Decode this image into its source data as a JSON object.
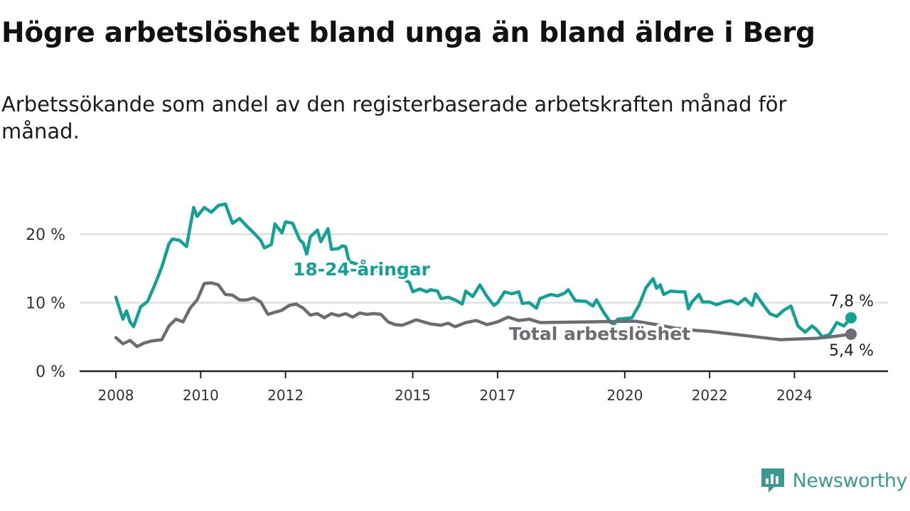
{
  "title": "Högre arbetslöshet bland unga än bland äldre i Berg",
  "subtitle": "Arbetssökande som andel av den registerbaserade arbetskraften månad för månad.",
  "brand": {
    "name": "Newsworthy",
    "icon": "newsworthy-logo-icon",
    "color": "#3a9a92"
  },
  "colors": {
    "youth": "#12a195",
    "total": "#6e6c73",
    "grid": "#d9d9d9",
    "axis": "#222222"
  },
  "chart_data": {
    "type": "line",
    "title": "Högre arbetslöshet bland unga än bland äldre i Berg",
    "xlabel": "",
    "ylabel": "",
    "x_range": [
      "2008-01",
      "2025-12"
    ],
    "ylim": [
      0,
      26
    ],
    "yticks": [
      {
        "value": 0,
        "label": "0 %"
      },
      {
        "value": 10,
        "label": "10 %"
      },
      {
        "value": 20,
        "label": "20 %"
      }
    ],
    "xticks": [
      {
        "year": 2008,
        "label": "2008"
      },
      {
        "year": 2010,
        "label": "2010"
      },
      {
        "year": 2012,
        "label": "2012"
      },
      {
        "year": 2015,
        "label": "2015"
      },
      {
        "year": 2017,
        "label": "2017"
      },
      {
        "year": 2020,
        "label": "2020"
      },
      {
        "year": 2022,
        "label": "2022"
      },
      {
        "year": 2024,
        "label": "2024"
      }
    ],
    "grid": true,
    "series": [
      {
        "name": "18-24-åringar",
        "color": "#12a195",
        "end_label": "7,8 %",
        "points": [
          [
            "2008-01",
            10.8
          ],
          [
            "2008-03",
            7.6
          ],
          [
            "2008-04",
            8.8
          ],
          [
            "2008-05",
            7.2
          ],
          [
            "2008-06",
            6.5
          ],
          [
            "2008-08",
            9.4
          ],
          [
            "2008-10",
            10.2
          ],
          [
            "2008-12",
            12.6
          ],
          [
            "2009-02",
            15.2
          ],
          [
            "2009-04",
            18.6
          ],
          [
            "2009-05",
            19.3
          ],
          [
            "2009-07",
            19.1
          ],
          [
            "2009-09",
            18.2
          ],
          [
            "2009-11",
            23.9
          ],
          [
            "2009-12",
            22.6
          ],
          [
            "2010-02",
            23.9
          ],
          [
            "2010-04",
            23.2
          ],
          [
            "2010-06",
            24.2
          ],
          [
            "2010-08",
            24.4
          ],
          [
            "2010-10",
            21.6
          ],
          [
            "2010-12",
            22.3
          ],
          [
            "2011-02",
            21.2
          ],
          [
            "2011-04",
            20.2
          ],
          [
            "2011-06",
            19.1
          ],
          [
            "2011-07",
            18.0
          ],
          [
            "2011-09",
            18.5
          ],
          [
            "2011-10",
            21.5
          ],
          [
            "2011-12",
            20.2
          ],
          [
            "2012-01",
            21.8
          ],
          [
            "2012-03",
            21.6
          ],
          [
            "2012-05",
            19.2
          ],
          [
            "2012-06",
            18.7
          ],
          [
            "2012-07",
            17.1
          ],
          [
            "2012-08",
            19.6
          ],
          [
            "2012-10",
            20.6
          ],
          [
            "2012-11",
            18.9
          ],
          [
            "2013-01",
            20.8
          ],
          [
            "2013-02",
            17.8
          ],
          [
            "2013-04",
            17.9
          ],
          [
            "2013-05",
            18.3
          ],
          [
            "2013-06",
            18.2
          ],
          [
            "2013-07",
            16.0
          ],
          [
            "2014-10",
            13.5
          ],
          [
            "2014-12",
            13.0
          ],
          [
            "2015-01",
            11.6
          ],
          [
            "2015-03",
            12.0
          ],
          [
            "2015-05",
            11.6
          ],
          [
            "2015-06",
            11.9
          ],
          [
            "2015-08",
            11.7
          ],
          [
            "2015-09",
            10.6
          ],
          [
            "2015-11",
            10.8
          ],
          [
            "2016-01",
            10.4
          ],
          [
            "2016-03",
            9.8
          ],
          [
            "2016-04",
            11.7
          ],
          [
            "2016-06",
            10.9
          ],
          [
            "2016-08",
            12.6
          ],
          [
            "2016-10",
            10.9
          ],
          [
            "2016-12",
            9.6
          ],
          [
            "2017-01",
            10.0
          ],
          [
            "2017-03",
            11.6
          ],
          [
            "2017-05",
            11.3
          ],
          [
            "2017-07",
            11.6
          ],
          [
            "2017-08",
            9.9
          ],
          [
            "2017-10",
            10.0
          ],
          [
            "2017-12",
            9.2
          ],
          [
            "2018-01",
            10.6
          ],
          [
            "2018-04",
            11.2
          ],
          [
            "2018-06",
            11.0
          ],
          [
            "2018-08",
            11.4
          ],
          [
            "2018-09",
            11.9
          ],
          [
            "2018-11",
            10.3
          ],
          [
            "2019-02",
            10.2
          ],
          [
            "2019-04",
            9.5
          ],
          [
            "2019-05",
            10.4
          ],
          [
            "2019-07",
            8.6
          ],
          [
            "2019-09",
            7.1
          ],
          [
            "2019-10",
            6.9
          ],
          [
            "2019-11",
            7.6
          ],
          [
            "2020-03",
            7.8
          ],
          [
            "2020-05",
            9.6
          ],
          [
            "2020-07",
            12.2
          ],
          [
            "2020-09",
            13.5
          ],
          [
            "2020-10",
            12.1
          ],
          [
            "2020-11",
            12.6
          ],
          [
            "2020-12",
            11.2
          ],
          [
            "2021-02",
            11.7
          ],
          [
            "2021-04",
            11.6
          ],
          [
            "2021-06",
            11.6
          ],
          [
            "2021-07",
            9.1
          ],
          [
            "2021-08",
            10.1
          ],
          [
            "2021-10",
            11.2
          ],
          [
            "2021-11",
            10.1
          ],
          [
            "2022-01",
            10.1
          ],
          [
            "2022-03",
            9.7
          ],
          [
            "2022-05",
            10.1
          ],
          [
            "2022-07",
            10.3
          ],
          [
            "2022-09",
            9.8
          ],
          [
            "2022-11",
            10.6
          ],
          [
            "2023-01",
            9.6
          ],
          [
            "2023-02",
            11.3
          ],
          [
            "2023-04",
            9.8
          ],
          [
            "2023-06",
            8.4
          ],
          [
            "2023-08",
            8.0
          ],
          [
            "2023-10",
            8.9
          ],
          [
            "2023-12",
            9.5
          ],
          [
            "2024-02",
            6.6
          ],
          [
            "2024-04",
            5.7
          ],
          [
            "2024-06",
            6.6
          ],
          [
            "2024-07",
            6.2
          ],
          [
            "2024-09",
            5.0
          ],
          [
            "2024-11",
            5.4
          ],
          [
            "2025-01",
            7.1
          ],
          [
            "2025-03",
            6.6
          ],
          [
            "2025-05",
            7.8
          ]
        ]
      },
      {
        "name": "Total arbetslöshet",
        "color": "#6e6c73",
        "end_label": "5,4 %",
        "points": [
          [
            "2008-01",
            4.9
          ],
          [
            "2008-03",
            4.0
          ],
          [
            "2008-05",
            4.5
          ],
          [
            "2008-07",
            3.6
          ],
          [
            "2008-09",
            4.1
          ],
          [
            "2008-11",
            4.4
          ],
          [
            "2009-02",
            4.6
          ],
          [
            "2009-04",
            6.6
          ],
          [
            "2009-06",
            7.6
          ],
          [
            "2009-08",
            7.2
          ],
          [
            "2009-10",
            9.2
          ],
          [
            "2009-12",
            10.4
          ],
          [
            "2010-02",
            12.8
          ],
          [
            "2010-04",
            12.9
          ],
          [
            "2010-06",
            12.6
          ],
          [
            "2010-08",
            11.2
          ],
          [
            "2010-10",
            11.1
          ],
          [
            "2010-12",
            10.4
          ],
          [
            "2011-02",
            10.4
          ],
          [
            "2011-04",
            10.7
          ],
          [
            "2011-06",
            10.1
          ],
          [
            "2011-08",
            8.3
          ],
          [
            "2011-10",
            8.6
          ],
          [
            "2011-12",
            8.9
          ],
          [
            "2012-02",
            9.6
          ],
          [
            "2012-04",
            9.8
          ],
          [
            "2012-06",
            9.2
          ],
          [
            "2012-08",
            8.2
          ],
          [
            "2012-10",
            8.4
          ],
          [
            "2012-12",
            7.8
          ],
          [
            "2013-02",
            8.4
          ],
          [
            "2013-04",
            8.1
          ],
          [
            "2013-06",
            8.4
          ],
          [
            "2013-08",
            7.9
          ],
          [
            "2013-10",
            8.5
          ],
          [
            "2013-12",
            8.3
          ],
          [
            "2014-02",
            8.4
          ],
          [
            "2014-04",
            8.3
          ],
          [
            "2014-06",
            7.2
          ],
          [
            "2014-08",
            6.8
          ],
          [
            "2014-10",
            6.7
          ],
          [
            "2014-12",
            7.1
          ],
          [
            "2015-02",
            7.5
          ],
          [
            "2015-04",
            7.2
          ],
          [
            "2015-06",
            6.9
          ],
          [
            "2015-09",
            6.7
          ],
          [
            "2015-11",
            7.0
          ],
          [
            "2016-01",
            6.5
          ],
          [
            "2016-04",
            7.1
          ],
          [
            "2016-07",
            7.4
          ],
          [
            "2016-10",
            6.8
          ],
          [
            "2017-01",
            7.2
          ],
          [
            "2017-04",
            7.9
          ],
          [
            "2017-07",
            7.4
          ],
          [
            "2017-10",
            7.6
          ],
          [
            "2018-01",
            7.1
          ],
          [
            "2020-04",
            7.3
          ],
          [
            "2020-10",
            6.8
          ],
          [
            "2021-03",
            6.3
          ],
          [
            "2021-08",
            6.0
          ],
          [
            "2022-01",
            5.8
          ],
          [
            "2022-06",
            5.5
          ],
          [
            "2022-11",
            5.2
          ],
          [
            "2023-04",
            4.9
          ],
          [
            "2023-09",
            4.6
          ],
          [
            "2024-02",
            4.7
          ],
          [
            "2024-07",
            4.8
          ],
          [
            "2024-11",
            5.0
          ],
          [
            "2025-05",
            5.4
          ]
        ]
      }
    ]
  }
}
